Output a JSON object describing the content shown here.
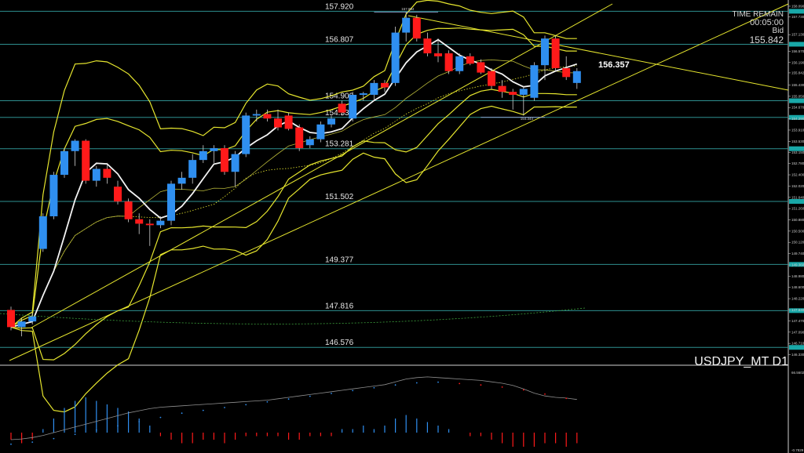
{
  "info": {
    "symbol": "USDJPY_MT D1",
    "timer_title": "TIME REMAIN",
    "timer_value": "00:05:00",
    "bid_label": "Bid",
    "bid_value": "155.842",
    "current_price_label": "156.357",
    "high_marker": "157.894",
    "low_marker": "154.344",
    "sub_axis_top": "66.5602",
    "sub_axis_bottom": "-0.7829"
  },
  "colors": {
    "bull": "#2f8ff0",
    "bear": "#ff1a1a",
    "band": "#e6e62e",
    "ma_fast": "#f4f4f4",
    "level": "#2e8f8f",
    "axis_tag": "#19a8a8",
    "osc_line": "#8f8f8f"
  },
  "chart_data": {
    "type": "candlestick",
    "ylim": [
      146.0,
      158.3
    ],
    "levels": [
      "157.920",
      "156.807",
      "154.900",
      "154.338",
      "153.281",
      "151.502",
      "149.377",
      "147.816",
      "146.576"
    ],
    "y_ticks": [
      "158.090",
      "157.730",
      "157.130",
      "156.570",
      "156.190",
      "155.842",
      "155.430",
      "155.050",
      "154.670",
      "154.290",
      "153.910",
      "153.530",
      "153.150",
      "152.780",
      "152.400",
      "152.020",
      "151.640",
      "151.260",
      "150.880",
      "150.500",
      "150.120",
      "149.740",
      "149.360",
      "148.980",
      "148.600",
      "148.220",
      "147.840",
      "147.470",
      "147.090",
      "146.710",
      "146.330"
    ],
    "candles": [
      {
        "o": 147.84,
        "h": 147.95,
        "l": 147.15,
        "c": 147.26
      },
      {
        "o": 147.26,
        "h": 147.55,
        "l": 146.95,
        "c": 147.45
      },
      {
        "o": 147.45,
        "h": 147.75,
        "l": 147.35,
        "c": 147.62
      },
      {
        "o": 149.9,
        "h": 151.1,
        "l": 149.8,
        "c": 151.0
      },
      {
        "o": 151.0,
        "h": 152.5,
        "l": 150.9,
        "c": 152.4
      },
      {
        "o": 152.4,
        "h": 153.3,
        "l": 152.3,
        "c": 153.2
      },
      {
        "o": 153.2,
        "h": 153.6,
        "l": 152.7,
        "c": 153.55
      },
      {
        "o": 153.55,
        "h": 153.6,
        "l": 152.1,
        "c": 152.2
      },
      {
        "o": 152.2,
        "h": 152.7,
        "l": 152.0,
        "c": 152.6
      },
      {
        "o": 152.6,
        "h": 152.8,
        "l": 152.1,
        "c": 152.3
      },
      {
        "o": 152.0,
        "h": 152.2,
        "l": 151.4,
        "c": 151.5
      },
      {
        "o": 151.5,
        "h": 151.6,
        "l": 150.8,
        "c": 150.9
      },
      {
        "o": 150.9,
        "h": 151.1,
        "l": 150.4,
        "c": 150.75
      },
      {
        "o": 150.75,
        "h": 150.9,
        "l": 150.0,
        "c": 150.7
      },
      {
        "o": 150.7,
        "h": 151.0,
        "l": 150.6,
        "c": 150.85
      },
      {
        "o": 150.85,
        "h": 152.2,
        "l": 150.7,
        "c": 152.1
      },
      {
        "o": 152.1,
        "h": 152.5,
        "l": 151.9,
        "c": 152.3
      },
      {
        "o": 152.3,
        "h": 153.1,
        "l": 152.1,
        "c": 152.9
      },
      {
        "o": 152.9,
        "h": 153.4,
        "l": 152.8,
        "c": 153.2
      },
      {
        "o": 153.2,
        "h": 153.4,
        "l": 152.8,
        "c": 153.3
      },
      {
        "o": 153.3,
        "h": 153.4,
        "l": 152.4,
        "c": 152.5
      },
      {
        "o": 152.5,
        "h": 153.2,
        "l": 152.0,
        "c": 153.1
      },
      {
        "o": 153.1,
        "h": 154.5,
        "l": 153.0,
        "c": 154.4
      },
      {
        "o": 154.4,
        "h": 154.6,
        "l": 154.2,
        "c": 154.45
      },
      {
        "o": 154.45,
        "h": 154.6,
        "l": 154.2,
        "c": 154.3
      },
      {
        "o": 154.3,
        "h": 154.6,
        "l": 153.9,
        "c": 154.0
      },
      {
        "o": 154.4,
        "h": 154.5,
        "l": 153.9,
        "c": 153.95
      },
      {
        "o": 154.0,
        "h": 154.1,
        "l": 153.2,
        "c": 153.3
      },
      {
        "o": 153.4,
        "h": 153.7,
        "l": 153.3,
        "c": 153.6
      },
      {
        "o": 153.6,
        "h": 154.2,
        "l": 153.5,
        "c": 154.1
      },
      {
        "o": 154.1,
        "h": 154.4,
        "l": 154.0,
        "c": 154.3
      },
      {
        "o": 154.8,
        "h": 154.9,
        "l": 154.4,
        "c": 154.5
      },
      {
        "o": 154.3,
        "h": 155.2,
        "l": 154.2,
        "c": 155.1
      },
      {
        "o": 155.1,
        "h": 155.2,
        "l": 154.9,
        "c": 155.15
      },
      {
        "o": 155.1,
        "h": 155.6,
        "l": 154.9,
        "c": 155.5
      },
      {
        "o": 155.5,
        "h": 155.6,
        "l": 155.2,
        "c": 155.35
      },
      {
        "o": 155.5,
        "h": 157.4,
        "l": 155.4,
        "c": 157.2
      },
      {
        "o": 157.2,
        "h": 157.9,
        "l": 156.9,
        "c": 157.7
      },
      {
        "o": 157.7,
        "h": 157.8,
        "l": 156.9,
        "c": 157.0
      },
      {
        "o": 157.0,
        "h": 157.2,
        "l": 156.4,
        "c": 156.5
      },
      {
        "o": 156.5,
        "h": 157.0,
        "l": 156.2,
        "c": 156.4
      },
      {
        "o": 156.5,
        "h": 156.6,
        "l": 155.8,
        "c": 155.9
      },
      {
        "o": 155.9,
        "h": 156.5,
        "l": 155.8,
        "c": 156.4
      },
      {
        "o": 156.4,
        "h": 156.5,
        "l": 156.1,
        "c": 156.15
      },
      {
        "o": 156.2,
        "h": 156.3,
        "l": 155.8,
        "c": 155.85
      },
      {
        "o": 155.9,
        "h": 156.0,
        "l": 155.3,
        "c": 155.4
      },
      {
        "o": 155.4,
        "h": 155.6,
        "l": 155.0,
        "c": 155.2
      },
      {
        "o": 155.2,
        "h": 155.3,
        "l": 154.6,
        "c": 155.1
      },
      {
        "o": 155.1,
        "h": 155.4,
        "l": 154.4,
        "c": 155.3
      },
      {
        "o": 155.0,
        "h": 156.2,
        "l": 154.9,
        "c": 156.1
      },
      {
        "o": 156.1,
        "h": 157.1,
        "l": 155.6,
        "c": 157.0
      },
      {
        "o": 157.0,
        "h": 157.1,
        "l": 155.9,
        "c": 156.0
      },
      {
        "o": 156.0,
        "h": 156.4,
        "l": 155.6,
        "c": 155.7
      },
      {
        "o": 155.5,
        "h": 156.0,
        "l": 155.3,
        "c": 155.9
      }
    ],
    "oscillator": {
      "histogram": [
        -2,
        -3,
        -2,
        1,
        4,
        7,
        9,
        10,
        9,
        8,
        7,
        6,
        4,
        2,
        -1,
        -2,
        -3,
        -3,
        -2,
        -2,
        -3,
        -2,
        -1,
        -1,
        -1,
        -1,
        -2,
        -2,
        -1,
        -1,
        -1,
        1,
        1,
        2,
        1,
        2,
        4,
        5,
        4,
        3,
        2,
        1,
        0,
        -1,
        -1,
        -2,
        -3,
        -4,
        -4,
        -4,
        -3,
        -3,
        -4,
        -3
      ],
      "line": [
        10,
        11,
        13,
        16,
        20,
        24,
        28,
        32,
        36,
        40,
        44,
        48,
        51,
        54,
        56,
        57,
        58,
        59,
        60,
        61,
        62,
        63,
        64,
        65,
        66,
        68,
        70,
        72,
        74,
        76,
        78,
        80,
        82,
        84,
        86,
        88,
        92,
        96,
        98,
        99,
        98,
        97,
        96,
        95,
        94,
        92,
        90,
        87,
        82,
        76,
        72,
        70,
        69,
        67
      ],
      "signal": [
        8,
        9,
        11,
        13,
        16,
        19,
        22,
        25,
        28,
        31,
        34,
        37,
        40,
        43,
        46,
        49,
        52,
        54,
        56,
        58,
        60,
        62,
        64,
        66,
        68,
        70,
        72,
        74,
        76,
        78,
        80,
        82,
        84,
        86,
        88,
        90,
        92,
        94,
        95,
        96,
        96,
        95,
        94,
        93,
        92,
        91,
        89,
        87,
        85,
        82,
        79,
        76,
        73,
        71
      ]
    }
  }
}
